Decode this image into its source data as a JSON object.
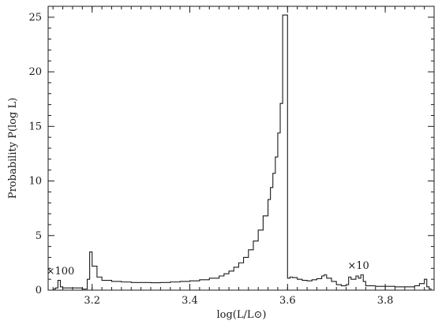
{
  "chart_data": {
    "type": "line",
    "style": "step",
    "title": "",
    "xlabel": "log(L/L⊙)",
    "ylabel": "Probability  P(log L)",
    "xlim": [
      3.11,
      3.9
    ],
    "ylim": [
      0,
      26
    ],
    "x_ticks": [
      3.2,
      3.4,
      3.6,
      3.8
    ],
    "x_tick_labels": [
      "3.2",
      "3.4",
      "3.6",
      "3.8"
    ],
    "y_ticks": [
      0,
      5,
      10,
      15,
      20,
      25
    ],
    "y_tick_labels": [
      "0",
      "5",
      "10",
      "15",
      "20",
      "25"
    ],
    "grid": false,
    "legend": "none",
    "annotations": [
      {
        "text": "×100",
        "x": 3.135,
        "y": 1.3
      },
      {
        "text": "×10",
        "x": 3.745,
        "y": 1.8
      }
    ],
    "series": [
      {
        "name": "",
        "color": "#1a1a1a",
        "x": [
          3.12,
          3.125,
          3.13,
          3.135,
          3.14,
          3.15,
          3.16,
          3.17,
          3.18,
          3.185,
          3.19,
          3.195,
          3.2,
          3.21,
          3.22,
          3.24,
          3.26,
          3.28,
          3.3,
          3.32,
          3.34,
          3.36,
          3.38,
          3.4,
          3.42,
          3.44,
          3.46,
          3.47,
          3.48,
          3.49,
          3.5,
          3.51,
          3.52,
          3.53,
          3.54,
          3.55,
          3.56,
          3.565,
          3.57,
          3.575,
          3.58,
          3.585,
          3.59,
          3.595,
          3.6,
          3.605,
          3.61,
          3.62,
          3.63,
          3.64,
          3.65,
          3.66,
          3.67,
          3.675,
          3.68,
          3.69,
          3.7,
          3.71,
          3.72,
          3.725,
          3.73,
          3.74,
          3.745,
          3.75,
          3.755,
          3.76,
          3.78,
          3.8,
          3.82,
          3.84,
          3.86,
          3.87,
          3.88,
          3.885,
          3.89
        ],
        "y": [
          0.1,
          0.2,
          0.9,
          0.3,
          0.2,
          0.2,
          0.2,
          0.2,
          0.1,
          0.1,
          1.0,
          3.5,
          2.2,
          1.2,
          0.9,
          0.8,
          0.75,
          0.7,
          0.7,
          0.68,
          0.7,
          0.75,
          0.8,
          0.85,
          0.95,
          1.1,
          1.3,
          1.5,
          1.75,
          2.1,
          2.5,
          3.0,
          3.7,
          4.5,
          5.5,
          6.8,
          8.3,
          9.4,
          10.7,
          12.2,
          14.4,
          17.1,
          25.2,
          25.2,
          1.1,
          1.2,
          1.15,
          1.0,
          0.9,
          0.85,
          0.95,
          1.05,
          1.3,
          1.4,
          1.1,
          0.8,
          0.5,
          0.4,
          0.5,
          1.2,
          1.0,
          1.3,
          1.1,
          1.4,
          0.8,
          0.4,
          0.35,
          0.35,
          0.3,
          0.3,
          0.4,
          0.6,
          1.0,
          0.3,
          0.1
        ]
      }
    ]
  }
}
